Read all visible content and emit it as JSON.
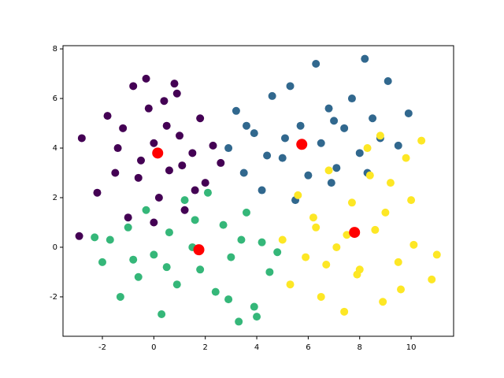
{
  "chart_data": {
    "type": "scatter",
    "xlim": [
      -3.53,
      11.65
    ],
    "ylim": [
      -3.59,
      8.13
    ],
    "xticks": [
      -2,
      0,
      2,
      4,
      6,
      8,
      10
    ],
    "yticks": [
      -2,
      0,
      2,
      4,
      6,
      8
    ],
    "series": [
      {
        "color": "#440154",
        "marker_size": 5,
        "x": [
          -2.9,
          -2.8,
          -2.2,
          -1.8,
          -1.5,
          -1.2,
          -1.0,
          -0.8,
          -0.5,
          -0.3,
          0,
          0.2,
          0.4,
          0.6,
          0.8,
          1.0,
          1.2,
          1.5,
          1.8,
          2.0,
          2.3,
          2.6,
          -0.6,
          0.5,
          1.1,
          -1.4,
          0.0,
          1.6,
          -0.2,
          0.9
        ],
        "y": [
          0.45,
          4.4,
          2.2,
          5.3,
          3.0,
          4.8,
          1.2,
          6.5,
          3.5,
          6.8,
          4.2,
          2.0,
          5.9,
          3.1,
          6.6,
          4.5,
          1.5,
          3.8,
          5.2,
          2.6,
          4.1,
          3.4,
          2.8,
          4.9,
          3.3,
          4.0,
          1.0,
          2.3,
          5.6,
          6.2
        ]
      },
      {
        "color": "#31688e",
        "marker_size": 5,
        "x": [
          2.9,
          3.2,
          3.5,
          3.9,
          4.2,
          4.6,
          5.0,
          5.3,
          5.7,
          6.0,
          6.3,
          6.5,
          6.8,
          7.1,
          7.4,
          7.7,
          8.0,
          8.2,
          8.5,
          8.8,
          9.1,
          9.5,
          9.9,
          4.4,
          5.5,
          6.9,
          3.6,
          8.3,
          7.0,
          5.1
        ],
        "y": [
          4.0,
          5.5,
          3.0,
          4.6,
          2.3,
          6.1,
          3.6,
          6.5,
          4.9,
          2.9,
          7.4,
          4.2,
          5.6,
          3.2,
          4.8,
          6.0,
          3.8,
          7.6,
          5.2,
          4.4,
          6.7,
          4.1,
          5.4,
          3.7,
          1.9,
          2.6,
          4.9,
          3.0,
          5.1,
          4.4
        ]
      },
      {
        "color": "#35b779",
        "marker_size": 5,
        "x": [
          -2.3,
          -2.0,
          -1.7,
          -1.3,
          -1.0,
          -0.6,
          -0.3,
          0,
          0.3,
          0.6,
          0.9,
          1.2,
          1.5,
          1.8,
          2.1,
          2.4,
          2.7,
          3.0,
          3.3,
          3.6,
          3.9,
          4.2,
          4.5,
          4.8,
          0.5,
          1.6,
          2.9,
          3.4,
          -0.8,
          4.0
        ],
        "y": [
          0.4,
          -0.6,
          0.3,
          -2.0,
          0.8,
          -1.2,
          1.5,
          -0.3,
          -2.7,
          0.6,
          -1.5,
          1.9,
          0.0,
          -0.9,
          2.2,
          -1.8,
          0.9,
          -0.4,
          -3.0,
          1.4,
          -2.4,
          0.2,
          -1.0,
          -0.2,
          -0.8,
          1.1,
          -2.1,
          0.3,
          -0.5,
          -2.8
        ]
      },
      {
        "color": "#fde725",
        "marker_size": 5,
        "x": [
          5.0,
          5.3,
          5.6,
          5.9,
          6.2,
          6.5,
          6.8,
          7.1,
          7.4,
          7.7,
          8.0,
          8.3,
          8.6,
          8.9,
          9.2,
          9.5,
          9.8,
          10.1,
          10.4,
          10.8,
          11.0,
          7.5,
          8.4,
          6.3,
          9.0,
          7.9,
          8.8,
          6.7,
          10.0,
          9.6
        ],
        "y": [
          0.3,
          -1.5,
          2.1,
          -0.4,
          1.2,
          -2.0,
          3.1,
          0.0,
          -2.6,
          1.8,
          -0.9,
          4.0,
          0.7,
          -2.2,
          2.6,
          -0.6,
          3.6,
          0.1,
          4.3,
          -1.3,
          -0.3,
          0.5,
          2.9,
          0.8,
          1.4,
          -1.1,
          4.5,
          -0.7,
          1.9,
          -1.7
        ]
      },
      {
        "color": "#ff0000",
        "marker_size": 7,
        "x": [
          0.15,
          5.75,
          1.75,
          7.8
        ],
        "y": [
          3.8,
          4.15,
          -0.1,
          0.6
        ]
      }
    ]
  }
}
